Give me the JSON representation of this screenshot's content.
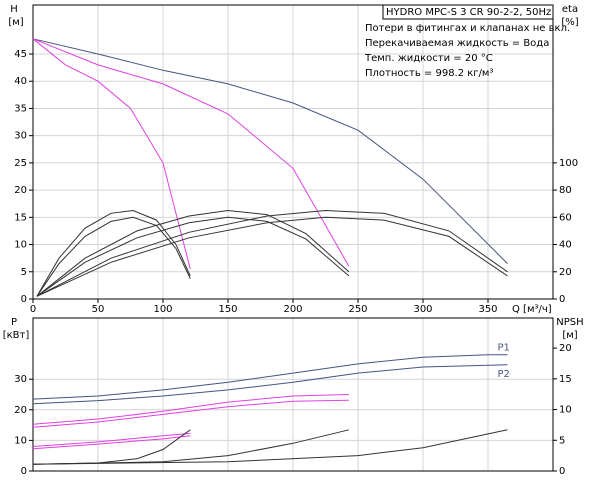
{
  "chart_data": [
    {
      "type": "line",
      "title": "HYDRO MPC-S 3 CR 90-2-2, 50Hz",
      "notes": [
        "Потери в фитингах и клапанах не вкл.",
        "Перекачиваемая жидкость = Вода",
        "Темп. жидкости = 20 °C",
        "Плотность = 998.2 кг/м³"
      ],
      "ylabel": "H",
      "yunit": "[м]",
      "y2label": "eta",
      "y2unit": "[%]",
      "xlabel": "Q [м³/ч]",
      "xlim": [
        0,
        400
      ],
      "xticks": [
        0,
        50,
        100,
        150,
        200,
        250,
        300,
        350
      ],
      "ylim": [
        0,
        54
      ],
      "yticks": [
        0,
        5,
        10,
        15,
        20,
        25,
        30,
        35,
        40,
        45
      ],
      "y2lim": [
        0,
        216
      ],
      "y2ticks": [
        0,
        20,
        40,
        60,
        80,
        100
      ],
      "grid": true,
      "series": [
        {
          "color": "#46557f",
          "x": [
            0,
            50,
            100,
            150,
            200,
            250,
            300,
            365
          ],
          "values": [
            47.8,
            45,
            42,
            39.5,
            36,
            31,
            22,
            6.5
          ]
        },
        {
          "color": "#e040e0",
          "x": [
            0,
            50,
            100,
            150,
            200,
            243
          ],
          "values": [
            47.8,
            43,
            39.5,
            34,
            24,
            6
          ]
        },
        {
          "color": "#e040e0",
          "x": [
            0,
            25,
            50,
            75,
            100,
            121
          ],
          "values": [
            47.8,
            43,
            40,
            35,
            25,
            5.5
          ]
        },
        {
          "color": "#333333",
          "axis": "y2",
          "x": [
            3,
            20,
            40,
            60,
            77,
            95,
            110,
            121
          ],
          "values": [
            2,
            30,
            52,
            63,
            65,
            58,
            40,
            17
          ]
        },
        {
          "color": "#333333",
          "axis": "y2",
          "x": [
            3,
            20,
            40,
            60,
            77,
            95,
            110,
            121
          ],
          "values": [
            2,
            26,
            46,
            57,
            60,
            54,
            37,
            15
          ]
        },
        {
          "color": "#333333",
          "axis": "y2",
          "x": [
            3,
            40,
            80,
            120,
            150,
            180,
            210,
            243
          ],
          "values": [
            2,
            30,
            50,
            61,
            65,
            62,
            48,
            20
          ]
        },
        {
          "color": "#333333",
          "axis": "y2",
          "x": [
            3,
            40,
            80,
            120,
            150,
            180,
            210,
            243
          ],
          "values": [
            2,
            27,
            45,
            56,
            60,
            57,
            44,
            17
          ]
        },
        {
          "color": "#333333",
          "axis": "y2",
          "x": [
            3,
            60,
            120,
            180,
            225,
            270,
            320,
            365
          ],
          "values": [
            2,
            30,
            49,
            61,
            65,
            63,
            50,
            20
          ]
        },
        {
          "color": "#333333",
          "axis": "y2",
          "x": [
            3,
            60,
            120,
            180,
            225,
            270,
            320,
            365
          ],
          "values": [
            2,
            27,
            45,
            56,
            60,
            58,
            46,
            17
          ]
        }
      ]
    },
    {
      "type": "line",
      "ylabel": "P",
      "yunit": "[кВт]",
      "y2label": "NPSH",
      "y2unit": "[м]",
      "xlim": [
        0,
        400
      ],
      "xticks": [
        0,
        50,
        100,
        150,
        200,
        250,
        300,
        350
      ],
      "ylim": [
        0,
        50
      ],
      "yticks": [
        0,
        10,
        20,
        30
      ],
      "y2lim": [
        0,
        24.9
      ],
      "y2ticks": [
        0,
        5,
        10,
        15,
        20
      ],
      "grid": true,
      "series": [
        {
          "name": "P1",
          "color": "#46557f",
          "x": [
            0,
            50,
            100,
            150,
            200,
            250,
            300,
            350,
            365
          ],
          "values": [
            23.5,
            24.5,
            26.5,
            29,
            32,
            35,
            37.2,
            38,
            38
          ]
        },
        {
          "name": "P2",
          "color": "#46557f",
          "x": [
            0,
            50,
            100,
            150,
            200,
            250,
            300,
            365
          ],
          "values": [
            22,
            23,
            24.5,
            26.5,
            29,
            32,
            34,
            34.7
          ]
        },
        {
          "color": "#e040e0",
          "x": [
            0,
            50,
            100,
            150,
            200,
            243
          ],
          "values": [
            15.3,
            17,
            19.5,
            22.5,
            24.5,
            25
          ]
        },
        {
          "color": "#e040e0",
          "x": [
            0,
            50,
            100,
            150,
            200,
            243
          ],
          "values": [
            14.3,
            16,
            18.5,
            21,
            22.8,
            23.1
          ]
        },
        {
          "color": "#e040e0",
          "x": [
            0,
            50,
            100,
            121
          ],
          "values": [
            8,
            9.5,
            11.5,
            12.3
          ]
        },
        {
          "color": "#e040e0",
          "x": [
            0,
            50,
            100,
            121
          ],
          "values": [
            7.3,
            8.8,
            10.5,
            11.5
          ]
        },
        {
          "color": "#333333",
          "axis": "y2",
          "x": [
            0,
            50,
            80,
            100,
            121
          ],
          "values": [
            1.1,
            1.3,
            2,
            3.5,
            6.7
          ]
        },
        {
          "color": "#333333",
          "axis": "y2",
          "x": [
            0,
            100,
            150,
            200,
            243
          ],
          "values": [
            1.1,
            1.5,
            2.5,
            4.5,
            6.7
          ]
        },
        {
          "color": "#333333",
          "axis": "y2",
          "x": [
            0,
            150,
            250,
            300,
            365
          ],
          "values": [
            1.1,
            1.5,
            2.5,
            3.8,
            6.7
          ]
        }
      ]
    }
  ]
}
